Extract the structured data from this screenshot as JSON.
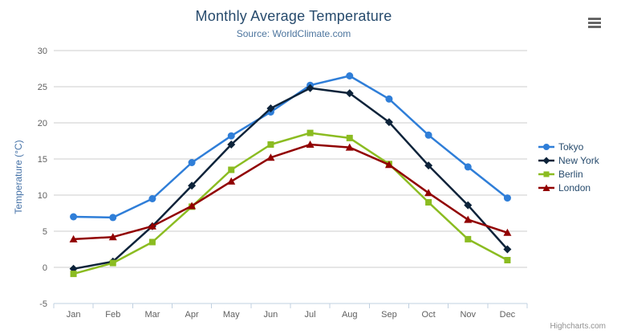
{
  "header": {
    "title": "Monthly Average Temperature",
    "subtitle": "Source: WorldClimate.com"
  },
  "export_menu": {
    "icon": "hamburger-icon"
  },
  "credits": {
    "label": "Highcharts.com"
  },
  "colors": {
    "title_text": "#274b6d",
    "subtitle_text": "#4d759e",
    "axis_label": "#606060",
    "yaxis_title": "#4572a7",
    "gridline": "#cccccc",
    "axis_line": "#c0d0e0",
    "tick": "#c0d0e0",
    "legend_text": "#274b6d",
    "credits_text": "#909090",
    "menu_icon": "#666666"
  },
  "chart_data": {
    "type": "line",
    "title": "Monthly Average Temperature",
    "subtitle": "Source: WorldClimate.com",
    "categories": [
      "Jan",
      "Feb",
      "Mar",
      "Apr",
      "May",
      "Jun",
      "Jul",
      "Aug",
      "Sep",
      "Oct",
      "Nov",
      "Dec"
    ],
    "series": [
      {
        "name": "Tokyo",
        "color": "#2f7ed8",
        "marker": "circle",
        "values": [
          7.0,
          6.9,
          9.5,
          14.5,
          18.2,
          21.5,
          25.2,
          26.5,
          23.3,
          18.3,
          13.9,
          9.6
        ]
      },
      {
        "name": "New York",
        "color": "#0d233a",
        "marker": "diamond",
        "values": [
          -0.2,
          0.8,
          5.7,
          11.3,
          17.0,
          22.0,
          24.8,
          24.1,
          20.1,
          14.1,
          8.6,
          2.5
        ]
      },
      {
        "name": "Berlin",
        "color": "#8bbc21",
        "marker": "square",
        "values": [
          -0.9,
          0.6,
          3.5,
          8.4,
          13.5,
          17.0,
          18.6,
          17.9,
          14.3,
          9.0,
          3.9,
          1.0
        ]
      },
      {
        "name": "London",
        "color": "#910000",
        "marker": "triangle",
        "values": [
          3.9,
          4.2,
          5.7,
          8.5,
          11.9,
          15.2,
          17.0,
          16.6,
          14.2,
          10.3,
          6.6,
          4.8
        ]
      }
    ],
    "xlabel": "",
    "ylabel": "Temperature (°C)",
    "ylim": [
      -5,
      30
    ],
    "ytick_step": 5,
    "grid": true,
    "legend_position": "right"
  }
}
